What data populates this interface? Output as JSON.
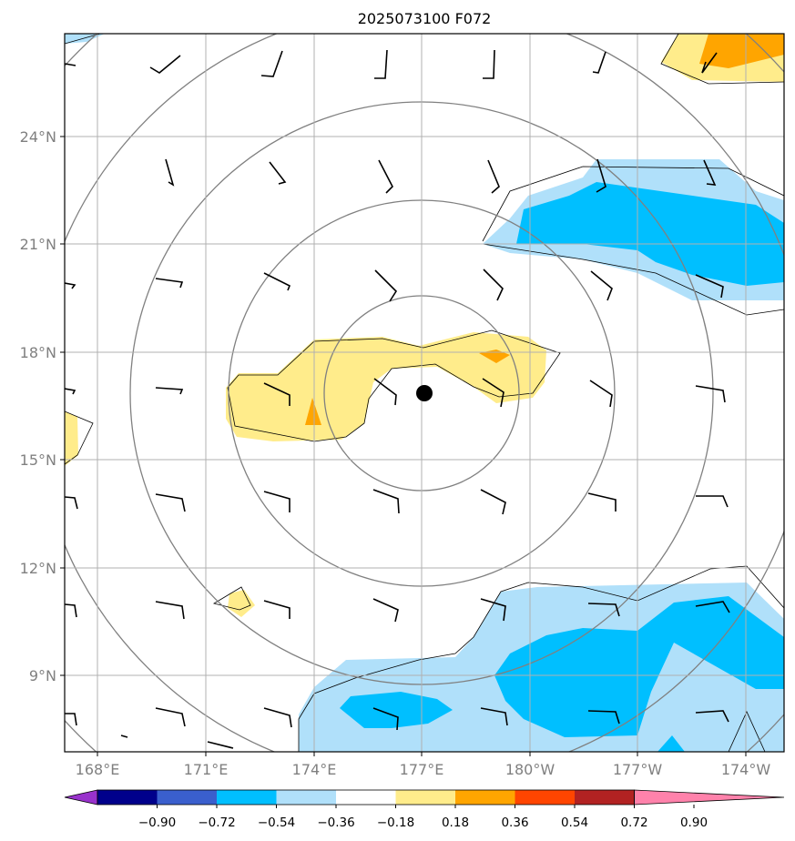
{
  "title": "2025073100 F072",
  "map": {
    "lon_labels": [
      "168°E",
      "171°E",
      "174°E",
      "177°E",
      "180°W",
      "177°W",
      "174°W"
    ],
    "lat_labels": [
      "24°N",
      "21°N",
      "18°N",
      "15°N",
      "12°N",
      "9°N"
    ],
    "storm_center": {
      "lon": "177°E",
      "lat": "16.9°N"
    }
  },
  "colorbar": {
    "levels": [
      "−0.90",
      "−0.72",
      "−0.54",
      "−0.36",
      "−0.18",
      "0.18",
      "0.36",
      "0.54",
      "0.72",
      "0.90"
    ],
    "colors": [
      "#9932cc",
      "#00008b",
      "#3a5fcd",
      "#00bfff",
      "#b0e0fa",
      "#ffffff",
      "#ffec8b",
      "#ffa500",
      "#ff4500",
      "#b22222",
      "#ff82ab"
    ]
  }
}
